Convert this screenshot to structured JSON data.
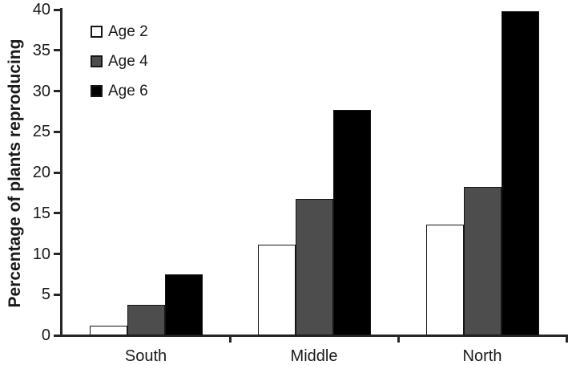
{
  "chart_data": {
    "type": "bar",
    "title": "",
    "ylabel": "Percentage of plants reproducing",
    "xlabel": "",
    "categories": [
      "South",
      "Middle",
      "North"
    ],
    "series": [
      {
        "name": "Age 2",
        "color": "#ffffff",
        "values": [
          1.2,
          11.1,
          13.6
        ]
      },
      {
        "name": "Age 4",
        "color": "#4d4d4d",
        "values": [
          3.7,
          16.7,
          18.2
        ]
      },
      {
        "name": "Age 6",
        "color": "#000000",
        "values": [
          7.5,
          27.7,
          39.8
        ]
      }
    ],
    "ylim": [
      0,
      40
    ],
    "yticks": [
      0,
      5,
      10,
      15,
      20,
      25,
      30,
      35,
      40
    ],
    "grid": false,
    "legend_position": "upper-left-inside",
    "colors": {
      "axis": "#262626",
      "text": "#1a1a1a",
      "bar_outline": "#161616"
    }
  }
}
